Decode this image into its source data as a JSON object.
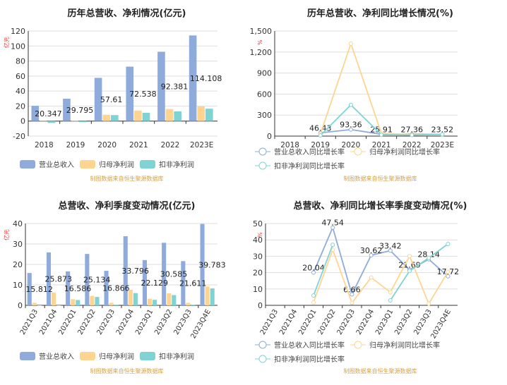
{
  "source_note": "制图数据来自恒生聚源数据库",
  "chart_data": [
    {
      "type": "bar",
      "title": "历年总营收、净利情况(亿元)",
      "ylabel": "亿元",
      "ylim": [
        -20,
        120
      ],
      "yticks": [
        -20,
        0,
        20,
        40,
        60,
        80,
        100,
        120
      ],
      "grid": true,
      "legend": "bottom",
      "categories": [
        "2018",
        "2019",
        "2020",
        "2021",
        "2022",
        "2023E"
      ],
      "series": [
        {
          "name": "营业总收入",
          "color": "#8eabdb",
          "values": [
            20.347,
            29.795,
            57.61,
            72.538,
            92.381,
            114.108
          ],
          "labels": [
            "20.347",
            "29.795",
            "57.61",
            "72.538",
            "92.381",
            "114.108"
          ]
        },
        {
          "name": "归母净利润",
          "color": "#fdd591",
          "values": [
            0.3,
            0.2,
            8.5,
            14,
            16,
            19.5
          ]
        },
        {
          "name": "扣非净利润",
          "color": "#7fd3d3",
          "values": [
            -2.5,
            -1.5,
            8,
            11,
            13,
            16.5
          ]
        }
      ]
    },
    {
      "type": "line",
      "title": "历年总营收、净利同比增长情况(%)",
      "ylabel": "%",
      "ylim": [
        0,
        1500
      ],
      "yticks": [
        0,
        300,
        600,
        900,
        1200,
        1500
      ],
      "ytick_labels": [
        "0",
        "300",
        "600",
        "900",
        "1,200",
        "1,500"
      ],
      "grid": true,
      "legend": "bottom",
      "categories": [
        "2018",
        "2019",
        "2020",
        "2021",
        "2022",
        "2023E"
      ],
      "series": [
        {
          "name": "营业总收入同比增长率",
          "color": "#8eabdb",
          "values": [
            null,
            46.43,
            93.36,
            25.91,
            27.36,
            23.52
          ],
          "labels": [
            null,
            "46.43",
            "93.36",
            "25.91",
            "27.36",
            "23.52"
          ]
        },
        {
          "name": "归母净利润同比增长率",
          "color": "#fdd591",
          "values": [
            null,
            30,
            1320,
            40,
            20,
            20
          ]
        },
        {
          "name": "扣非净利润同比增长率",
          "color": "#7fd3d3",
          "values": [
            null,
            10,
            445,
            20,
            15,
            25
          ]
        }
      ]
    },
    {
      "type": "bar",
      "title": "总营收、净利季度变动情况(亿元)",
      "ylabel": "亿元",
      "ylim": [
        0,
        40
      ],
      "yticks": [
        0,
        10,
        20,
        30,
        40
      ],
      "grid": true,
      "legend": "bottom",
      "categories": [
        "2021Q3",
        "2021Q4",
        "2022Q1",
        "2022Q2",
        "2022Q3",
        "2022Q4",
        "2023Q1",
        "2023Q2",
        "2023Q3",
        "2023Q4E"
      ],
      "series": [
        {
          "name": "营业总收入",
          "color": "#8eabdb",
          "values": [
            15.812,
            25.873,
            16.586,
            25.134,
            16.866,
            33.796,
            22.129,
            30.585,
            21.611,
            39.783
          ],
          "labels": [
            "15.812",
            "25.873",
            "16.586",
            "25.134",
            "16.866",
            "33.796",
            "22.129",
            "30.585",
            "21.611",
            "39.783"
          ]
        },
        {
          "name": "归母净利润",
          "color": "#fdd591",
          "values": [
            1.2,
            6.3,
            3.0,
            4.6,
            1.2,
            7.6,
            3.2,
            5.9,
            1.2,
            9.2
          ]
        },
        {
          "name": "扣非净利润",
          "color": "#7fd3d3",
          "values": [
            0,
            0,
            2.6,
            4.1,
            0.3,
            6.0,
            2.7,
            5.0,
            0.3,
            8.3
          ]
        }
      ]
    },
    {
      "type": "line",
      "title": "总营收、净利同比增长率季度变动情况(%)",
      "ylabel": "%",
      "ylim": [
        0,
        50
      ],
      "yticks": [
        0,
        10,
        20,
        30,
        40,
        50
      ],
      "grid": true,
      "legend": "bottom",
      "categories": [
        "2021Q3",
        "2021Q4",
        "2022Q1",
        "2022Q2",
        "2022Q3",
        "2022Q4",
        "2023Q1",
        "2023Q2",
        "2023Q3",
        "2023Q4E"
      ],
      "series": [
        {
          "name": "营业总收入同比增长率",
          "color": "#8eabdb",
          "values": [
            null,
            null,
            20.04,
            47.54,
            6.66,
            30.62,
            33.42,
            21.69,
            28.14,
            17.72
          ],
          "labels": [
            null,
            null,
            "20.04",
            "47.54",
            "6.66",
            "30.62",
            "33.42",
            "21.69",
            "28.14",
            "17.72"
          ]
        },
        {
          "name": "归母净利润同比增长率",
          "color": "#fdd591",
          "values": [
            null,
            null,
            1.8,
            34,
            1.5,
            17,
            8,
            30,
            1,
            20.5
          ]
        },
        {
          "name": "扣非净利润同比增长率",
          "color": "#7fd3d3",
          "values": [
            null,
            null,
            6,
            37,
            null,
            null,
            3,
            21,
            29,
            37.5
          ]
        }
      ]
    }
  ]
}
